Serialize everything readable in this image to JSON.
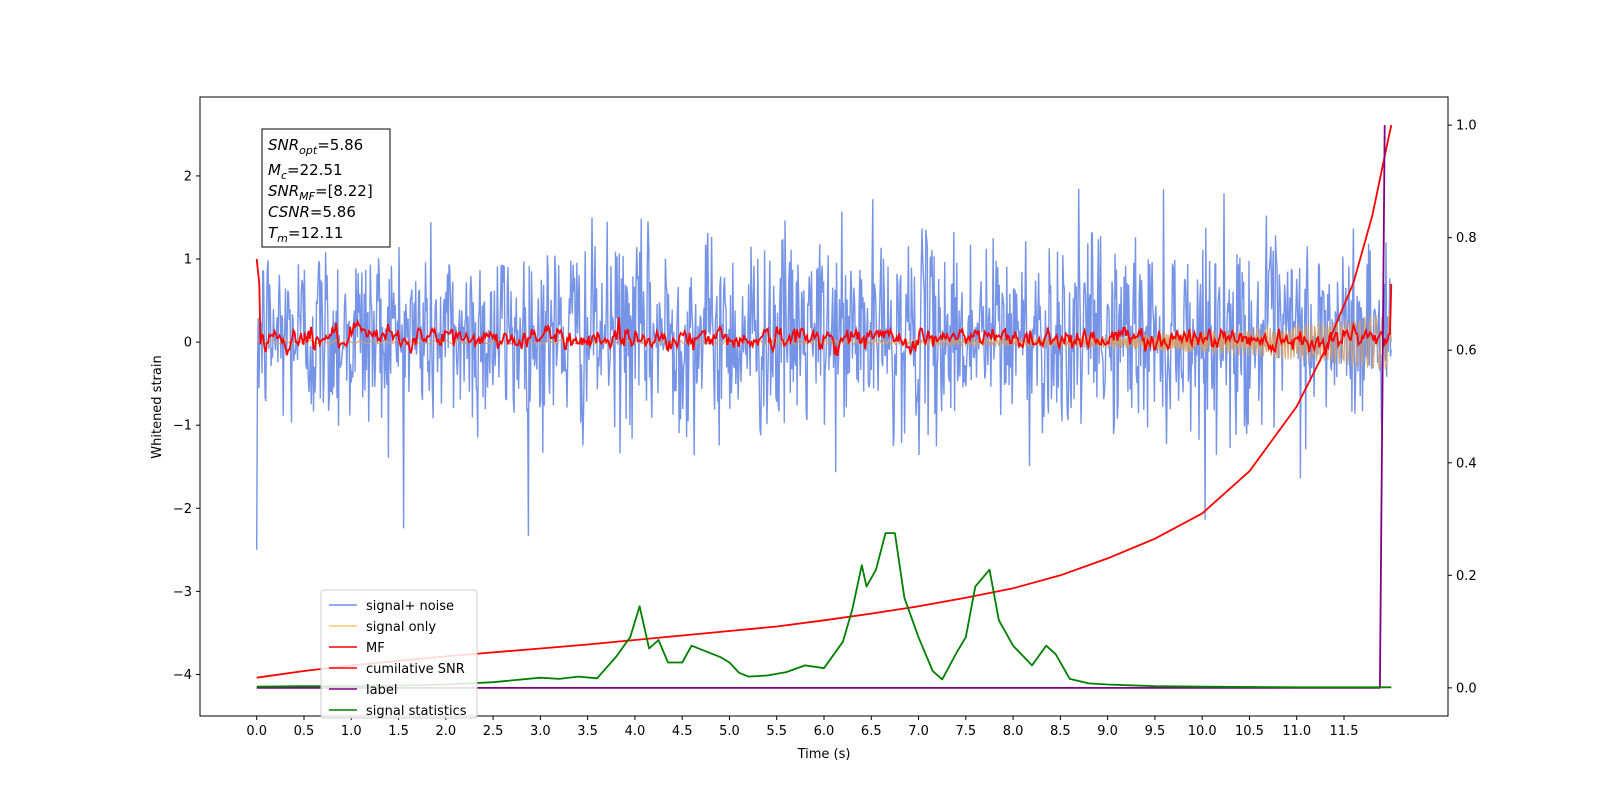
{
  "chart_data": {
    "type": "line",
    "title": "",
    "xlabel": "Time (s)",
    "ylabel": "Whitened strain",
    "xlim": [
      -0.6,
      12.6
    ],
    "ylim": [
      -4.5,
      2.95
    ],
    "y2lim": [
      -0.05,
      1.05
    ],
    "xticks": [
      0.0,
      0.5,
      1.0,
      1.5,
      2.0,
      2.5,
      3.0,
      3.5,
      4.0,
      4.5,
      5.0,
      5.5,
      6.0,
      6.5,
      7.0,
      7.5,
      8.0,
      8.5,
      9.0,
      9.5,
      10.0,
      10.5,
      11.0,
      11.5
    ],
    "xtick_labels": [
      "0.0",
      "0.5",
      "1.0",
      "1.5",
      "2.0",
      "2.5",
      "3.0",
      "3.5",
      "4.0",
      "4.5",
      "5.0",
      "5.5",
      "6.0",
      "6.5",
      "7.0",
      "7.5",
      "8.0",
      "8.5",
      "9.0",
      "9.5",
      "10.0",
      "10.5",
      "11.0",
      "11.5"
    ],
    "yticks": [
      -4,
      -3,
      -2,
      -1,
      0,
      1,
      2
    ],
    "ytick_labels": [
      "−4",
      "−3",
      "−2",
      "−1",
      "0",
      "1",
      "2"
    ],
    "y2ticks": [
      0.0,
      0.2,
      0.4,
      0.6,
      0.8,
      1.0
    ],
    "y2tick_labels": [
      "0.0",
      "0.2",
      "0.4",
      "0.6",
      "0.8",
      "1.0"
    ],
    "grid": false,
    "legend_position": "lower-left",
    "colors": {
      "signal_noise": "#6f8ee6",
      "signal_only": "#f5c875",
      "mf": "#ff0000",
      "cumulative_snr": "#ff0000",
      "label": "#800080",
      "signal_statistics": "#008000"
    },
    "annotation": {
      "lines": [
        {
          "main": "SNR",
          "sub": "opt",
          "rest": "=5.86"
        },
        {
          "main": "M",
          "sub": "c",
          "rest": "=22.51"
        },
        {
          "main": "SNR",
          "sub": "MF",
          "rest": "=[8.22]"
        },
        {
          "main": "CSNR",
          "sub": "",
          "rest": "=5.86"
        },
        {
          "main": "T",
          "sub": "m",
          "rest": "=12.11"
        }
      ]
    },
    "series": [
      {
        "name": "signal+ noise",
        "axis": "left",
        "x_range": [
          0.0,
          12.0
        ],
        "approx_range": [
          -2.7,
          2.65
        ],
        "typical_envelope": [
          -1.4,
          1.6
        ]
      },
      {
        "name": "signal only",
        "axis": "left",
        "x_range": [
          0.0,
          12.0
        ],
        "amplitude_start": 0.02,
        "amplitude_end": 0.35
      },
      {
        "name": "MF",
        "axis": "left",
        "x_range": [
          0.0,
          12.0
        ],
        "start_value": 1.0,
        "baseline": 0.05,
        "end_value": 0.7
      },
      {
        "name": "cumilative SNR",
        "axis": "right",
        "x": [
          0.0,
          0.5,
          1.0,
          1.5,
          2.0,
          2.5,
          3.0,
          3.5,
          4.0,
          4.5,
          5.0,
          5.5,
          6.0,
          6.5,
          7.0,
          7.5,
          8.0,
          8.5,
          9.0,
          9.5,
          10.0,
          10.5,
          11.0,
          11.3,
          11.6,
          11.8,
          11.95,
          12.0
        ],
        "values": [
          0.018,
          0.03,
          0.04,
          0.048,
          0.056,
          0.063,
          0.07,
          0.077,
          0.085,
          0.093,
          0.101,
          0.109,
          0.12,
          0.132,
          0.145,
          0.16,
          0.177,
          0.2,
          0.23,
          0.265,
          0.31,
          0.385,
          0.5,
          0.6,
          0.72,
          0.84,
          0.96,
          1.0
        ]
      },
      {
        "name": "label",
        "axis": "right",
        "x": [
          0.0,
          11.88,
          11.93
        ],
        "values": [
          0.0,
          0.0,
          1.0
        ]
      },
      {
        "name": "signal statistics",
        "axis": "right",
        "x": [
          0.0,
          0.5,
          1.0,
          1.5,
          2.0,
          2.5,
          3.0,
          3.2,
          3.4,
          3.6,
          3.8,
          3.95,
          4.05,
          4.15,
          4.25,
          4.35,
          4.5,
          4.6,
          4.75,
          4.9,
          5.0,
          5.1,
          5.2,
          5.4,
          5.6,
          5.8,
          6.0,
          6.2,
          6.3,
          6.4,
          6.45,
          6.55,
          6.65,
          6.75,
          6.85,
          7.0,
          7.15,
          7.25,
          7.4,
          7.5,
          7.6,
          7.75,
          7.85,
          8.0,
          8.2,
          8.35,
          8.45,
          8.6,
          8.8,
          9.0,
          9.5,
          10.0,
          11.0,
          12.0
        ],
        "values": [
          0.002,
          0.003,
          0.003,
          0.004,
          0.006,
          0.01,
          0.018,
          0.016,
          0.02,
          0.017,
          0.055,
          0.09,
          0.145,
          0.07,
          0.085,
          0.045,
          0.045,
          0.075,
          0.065,
          0.055,
          0.045,
          0.027,
          0.02,
          0.022,
          0.028,
          0.04,
          0.035,
          0.082,
          0.14,
          0.218,
          0.18,
          0.21,
          0.275,
          0.275,
          0.16,
          0.09,
          0.03,
          0.015,
          0.062,
          0.09,
          0.18,
          0.21,
          0.12,
          0.075,
          0.04,
          0.075,
          0.06,
          0.016,
          0.008,
          0.006,
          0.003,
          0.002,
          0.001,
          0.001
        ]
      }
    ]
  }
}
